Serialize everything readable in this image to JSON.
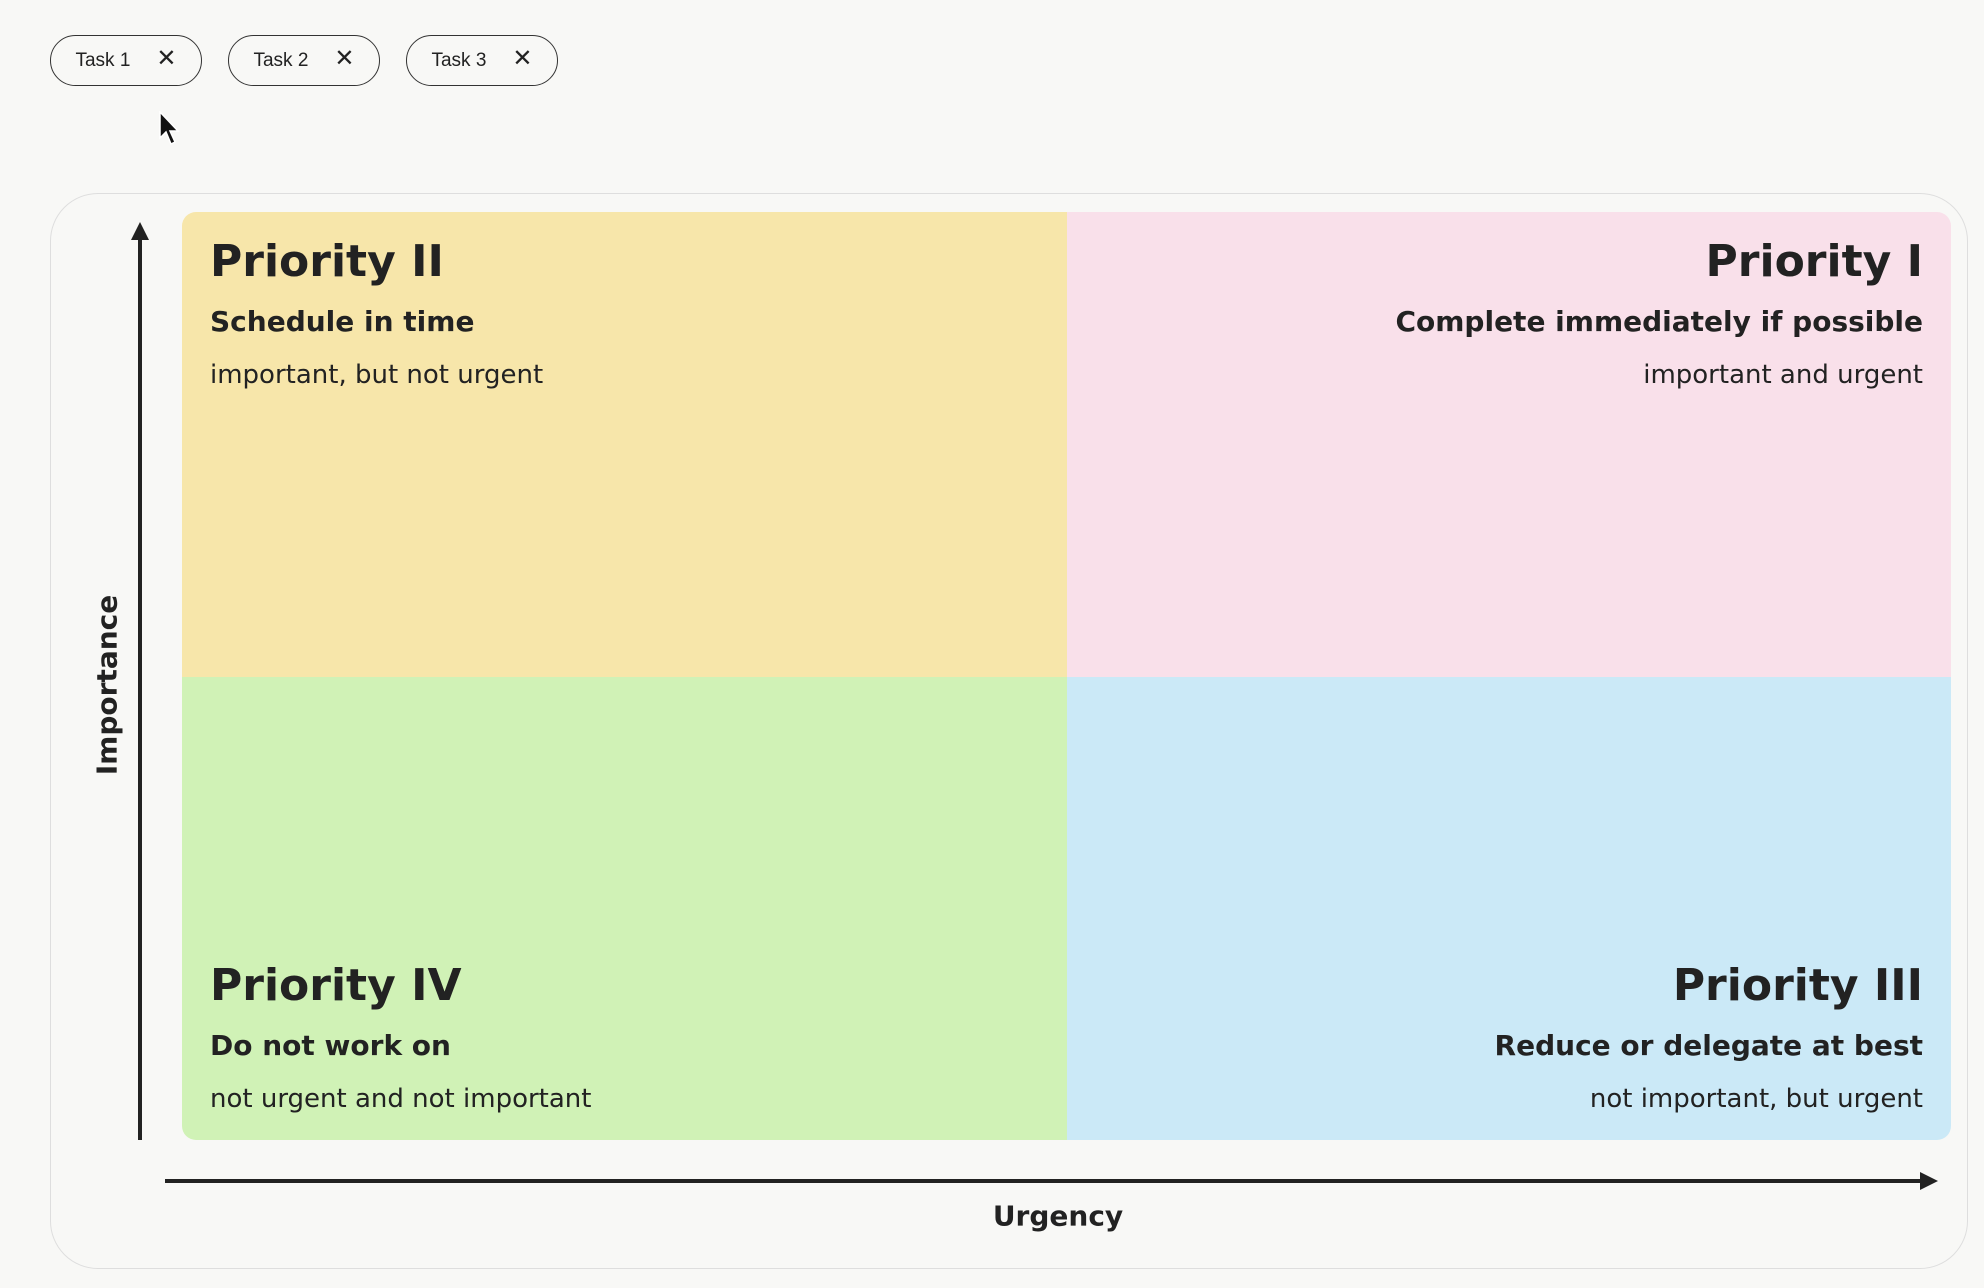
{
  "tasks": [
    {
      "label": "Task 1"
    },
    {
      "label": "Task 2"
    },
    {
      "label": "Task 3"
    }
  ],
  "matrix": {
    "y_axis_label": "Importance",
    "x_axis_label": "Urgency",
    "quadrants": {
      "q2": {
        "title": "Priority II",
        "subtitle": "Schedule in time",
        "description": "important, but not urgent",
        "color": "#f7e6aa"
      },
      "q1": {
        "title": "Priority I",
        "subtitle": "Complete immediately if possible",
        "description": "important and urgent",
        "color": "#f9e0ea"
      },
      "q4": {
        "title": "Priority IV",
        "subtitle": "Do not work on",
        "description": "not urgent and not important",
        "color": "#d0f2b6"
      },
      "q3": {
        "title": "Priority III",
        "subtitle": "Reduce or delegate at best",
        "description": "not important, but urgent",
        "color": "#cbe9f7"
      }
    }
  },
  "icons": {
    "remove": "close-icon",
    "cursor": "mouse-pointer-icon"
  }
}
